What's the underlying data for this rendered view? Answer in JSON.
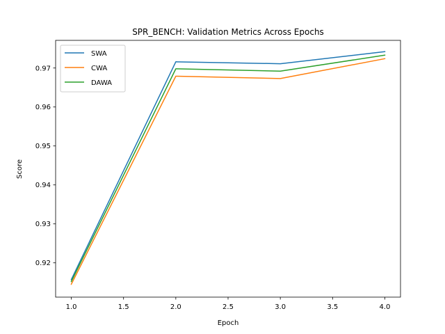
{
  "chart_data": {
    "type": "line",
    "title": "SPR_BENCH: Validation Metrics Across Epochs",
    "xlabel": "Epoch",
    "ylabel": "Score",
    "x": [
      1,
      2,
      3,
      4
    ],
    "xlim": [
      0.85,
      4.15
    ],
    "ylim": [
      0.9112,
      0.9771
    ],
    "xticks": [
      1.0,
      1.5,
      2.0,
      2.5,
      3.0,
      3.5,
      4.0
    ],
    "xtick_labels": [
      "1.0",
      "1.5",
      "2.0",
      "2.5",
      "3.0",
      "3.5",
      "4.0"
    ],
    "yticks": [
      0.92,
      0.93,
      0.94,
      0.95,
      0.96,
      0.97
    ],
    "ytick_labels": [
      "0.92",
      "0.93",
      "0.94",
      "0.95",
      "0.96",
      "0.97"
    ],
    "grid": false,
    "legend_position": "top-left",
    "series": [
      {
        "name": "SWA",
        "color": "#1f77b4",
        "values": [
          0.9157,
          0.9716,
          0.9711,
          0.9742
        ]
      },
      {
        "name": "CWA",
        "color": "#ff7f0e",
        "values": [
          0.9145,
          0.9679,
          0.9673,
          0.9724
        ]
      },
      {
        "name": "DAWA",
        "color": "#2ca02c",
        "values": [
          0.9152,
          0.9698,
          0.9692,
          0.9733
        ]
      }
    ]
  }
}
